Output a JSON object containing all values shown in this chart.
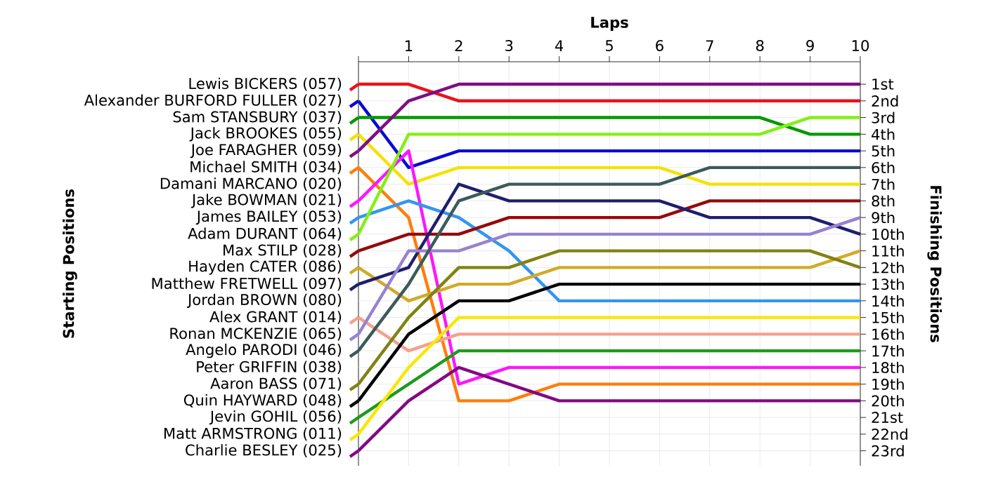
{
  "chart_data": {
    "type": "line",
    "xlabel": "Laps",
    "y2label": "Finishing Positions",
    "x": [
      0,
      1,
      2,
      3,
      4,
      5,
      6,
      7,
      8,
      9,
      10
    ],
    "xlim": [
      0,
      10
    ],
    "xticks": [
      {
        "value": 0,
        "label": null
      },
      1,
      2,
      3,
      4,
      5,
      6,
      7,
      8,
      9,
      10
    ],
    "y2lim": [
      23.9,
      -0.35
    ],
    "y2ticks": [
      {
        "value": 1,
        "label": "1st"
      },
      {
        "value": 2,
        "label": "2nd"
      },
      {
        "value": 3,
        "label": "3rd"
      },
      {
        "value": 4,
        "label": "4th"
      },
      {
        "value": 5,
        "label": "5th"
      },
      {
        "value": 6,
        "label": "6th"
      },
      {
        "value": 7,
        "label": "7th"
      },
      {
        "value": 8,
        "label": "8th"
      },
      {
        "value": 9,
        "label": "9th"
      },
      {
        "value": 10,
        "label": "10th"
      },
      {
        "value": 11,
        "label": "11th"
      },
      {
        "value": 12,
        "label": "12th"
      },
      {
        "value": 13,
        "label": "13th"
      },
      {
        "value": 14,
        "label": "14th"
      },
      {
        "value": 15,
        "label": "15th"
      },
      {
        "value": 16,
        "label": "16th"
      },
      {
        "value": 17,
        "label": "17th"
      },
      {
        "value": 18,
        "label": "18th"
      },
      {
        "value": 19,
        "label": "19th"
      },
      {
        "value": 20,
        "label": "20th"
      },
      {
        "value": 21,
        "label": "21st"
      },
      {
        "value": 22,
        "label": "22nd"
      },
      {
        "value": 23,
        "label": "23rd"
      }
    ],
    "annotations": [
      "Starting Positions",
      "Damani MARCANO (020)",
      "Jordan BROWN (080)",
      "Peter GRIFFIN (038)"
    ],
    "grid": true,
    "legend": "left",
    "marker": "none",
    "line_style": "solid",
    "series": [
      {
        "name": "Lewis BICKERS (057)",
        "color": "#e8141c",
        "axis": "y2",
        "values": [
          1,
          1,
          2,
          2,
          2,
          2,
          2,
          2,
          2,
          2,
          2
        ]
      },
      {
        "name": "Alexander BURFORD FULLER (027)",
        "color": "#0a0ad2",
        "axis": "y2",
        "values": [
          2,
          6,
          5,
          5,
          5,
          5,
          5,
          5,
          5,
          5,
          5
        ]
      },
      {
        "name": "Sam STANSBURY (037)",
        "color": "#009a00",
        "axis": "y2",
        "values": [
          3,
          3,
          3,
          3,
          3,
          3,
          3,
          3,
          3,
          4,
          4
        ]
      },
      {
        "name": "Jack BROOKES (055)",
        "color": "#f5e100",
        "axis": "y2",
        "values": [
          4,
          7,
          6,
          6,
          6,
          6,
          6,
          7,
          7,
          7,
          7
        ]
      },
      {
        "name": "Joe FARAGHER (059)",
        "color": "#7d0f82",
        "axis": "y2",
        "values": [
          5,
          2,
          1,
          1,
          1,
          1,
          1,
          1,
          1,
          1,
          1
        ]
      },
      {
        "name": "Michael SMITH (034)",
        "color": "#ff7d0a",
        "axis": "y2",
        "values": [
          6,
          9,
          20,
          20,
          19,
          19,
          19,
          19,
          19,
          19,
          19
        ]
      },
      {
        "name": "Jake BOWMAN (021)",
        "color": "#ff14ff",
        "axis": "y2",
        "values": [
          8,
          5,
          19,
          18,
          18,
          18,
          18,
          18,
          18,
          18,
          18
        ]
      },
      {
        "name": "James BAILEY (053)",
        "color": "#3296f0",
        "axis": "y2",
        "values": [
          9,
          8,
          9,
          11,
          14,
          14,
          14,
          14,
          14,
          14,
          14
        ]
      },
      {
        "name": "Adam DURANT (064)",
        "color": "#82f014",
        "axis": "y2",
        "values": [
          10,
          4,
          4,
          4,
          4,
          4,
          4,
          4,
          4,
          3,
          3
        ]
      },
      {
        "name": "Max STILP (028)",
        "color": "#960a0a",
        "axis": "y2",
        "values": [
          11,
          10,
          10,
          9,
          9,
          9,
          9,
          8,
          8,
          8,
          8
        ]
      },
      {
        "name": "Hayden CATER (086)",
        "color": "#d2aa28",
        "axis": "y2",
        "values": [
          12,
          14,
          13,
          13,
          12,
          12,
          12,
          12,
          12,
          12,
          11
        ]
      },
      {
        "name": "Matthew FRETWELL (097)",
        "color": "#1e1e6e",
        "axis": "y2",
        "values": [
          13,
          12,
          7,
          8,
          8,
          8,
          8,
          9,
          9,
          9,
          10
        ]
      },
      {
        "name": "Alex GRANT (014)",
        "color": "#f5a08c",
        "axis": "y2",
        "values": [
          15,
          17,
          16,
          16,
          16,
          16,
          16,
          16,
          16,
          16,
          16
        ]
      },
      {
        "name": "Ronan MCKENZIE (065)",
        "color": "#9682d2",
        "axis": "y2",
        "values": [
          16,
          11,
          11,
          10,
          10,
          10,
          10,
          10,
          10,
          10,
          9
        ]
      },
      {
        "name": "Angelo PARODI (046)",
        "color": "#3c5a5a",
        "axis": "y2",
        "values": [
          17,
          13,
          8,
          7,
          7,
          7,
          7,
          6,
          6,
          6,
          6
        ]
      },
      {
        "name": "Aaron BASS (071)",
        "color": "#828214",
        "axis": "y2",
        "values": [
          19,
          15,
          12,
          12,
          11,
          11,
          11,
          11,
          11,
          11,
          12
        ]
      },
      {
        "name": "Quin HAYWARD (048)",
        "color": "#000000",
        "axis": "y2",
        "values": [
          20,
          16,
          14,
          14,
          13,
          13,
          13,
          13,
          13,
          13,
          13
        ]
      },
      {
        "name": "Jevin GOHIL (056)",
        "color": "#1e9a1e",
        "axis": "y2",
        "values": [
          21,
          19,
          17,
          17,
          17,
          17,
          17,
          17,
          17,
          17,
          17
        ]
      },
      {
        "name": "Matt ARMSTRONG (011)",
        "color": "#fae600",
        "axis": "y2",
        "values": [
          22,
          18,
          15,
          15,
          15,
          15,
          15,
          15,
          15,
          15,
          15
        ]
      },
      {
        "name": "Charlie BESLEY (025)",
        "color": "#820a82",
        "axis": "y2",
        "values": [
          23,
          20,
          18,
          19,
          20,
          20,
          20,
          20,
          20,
          20,
          20
        ]
      }
    ]
  }
}
